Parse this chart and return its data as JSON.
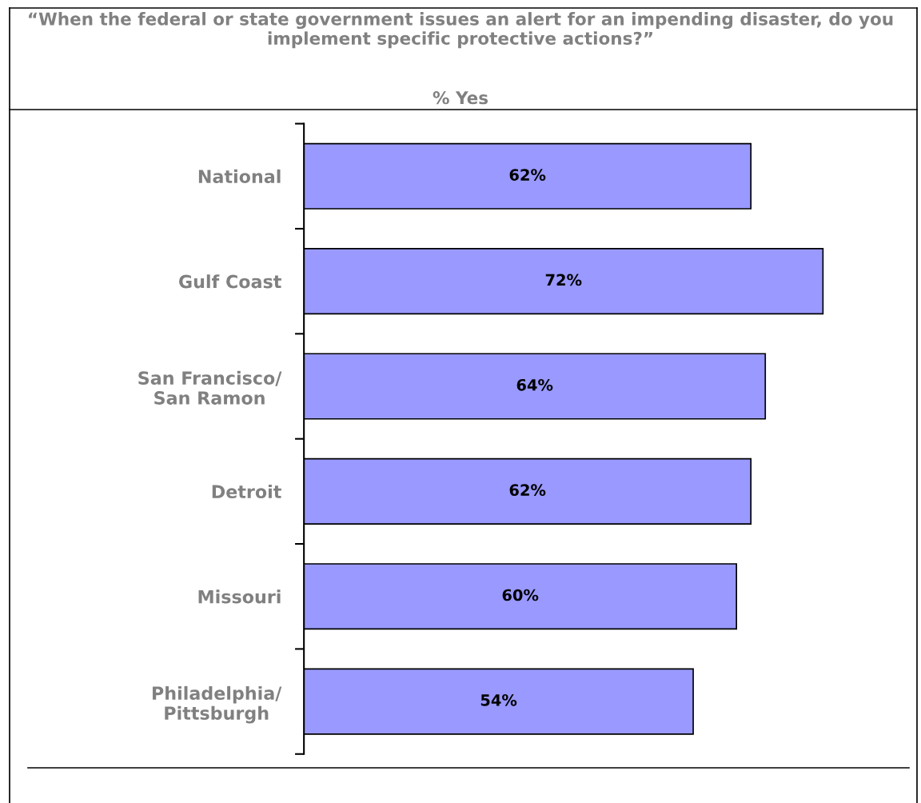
{
  "chart_data": {
    "type": "bar",
    "orientation": "horizontal",
    "title": "“When the federal or state government issues an alert for an impending disaster, do you implement specific protective actions?”",
    "subtitle": "% Yes",
    "categories": [
      "National",
      "Gulf Coast",
      "San Francisco/\nSan Ramon",
      "Detroit",
      "Missouri",
      "Philadelphia/\nPittsburgh"
    ],
    "values": [
      62,
      72,
      64,
      62,
      60,
      54
    ],
    "value_labels": [
      "62%",
      "72%",
      "64%",
      "62%",
      "60%",
      "54%"
    ],
    "color": "#9999ff",
    "grid": false,
    "legend": false,
    "tick_labels": "y"
  }
}
